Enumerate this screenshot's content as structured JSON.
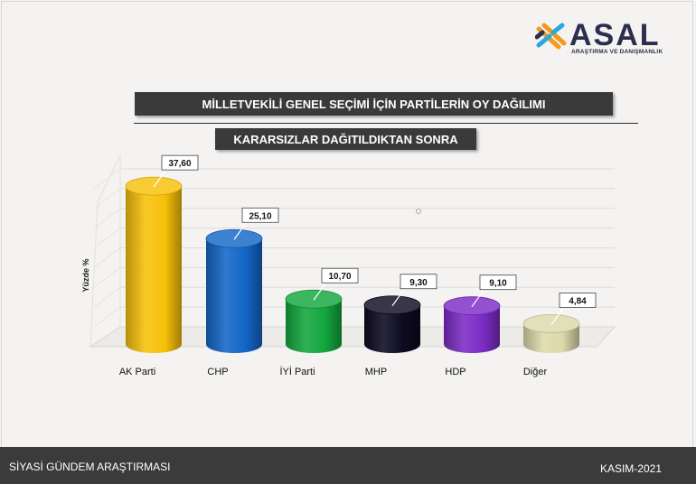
{
  "brand": {
    "name": "ASAL",
    "tagline": "ARAŞTIRMA VE DANIŞMANLIK",
    "colors": {
      "navy": "#2b2f4d",
      "orange": "#f39a1e",
      "blue": "#2aa7df"
    }
  },
  "header": {
    "title": "MİLLETVEKİLİ GENEL SEÇİMİ İÇİN PARTİLERİN OY DAĞILIMI",
    "subtitle": "KARARSIZLAR DAĞITILDIKTAN SONRA"
  },
  "chart_data": {
    "type": "bar",
    "title": "MİLLETVEKİLİ GENEL SEÇİMİ İÇİN PARTİLERİN OY DAĞILIMI",
    "subtitle": "KARARSIZLAR DAĞITILDIKTAN SONRA",
    "ylabel": "Yüzde %",
    "xlabel": "",
    "ylim": [
      0,
      40
    ],
    "grid": true,
    "categories": [
      "AK Parti",
      "CHP",
      "İYİ Parti",
      "MHP",
      "HDP",
      "Diğer"
    ],
    "values": [
      37.6,
      25.1,
      10.7,
      9.3,
      9.1,
      4.84
    ],
    "data_labels": [
      "37,60",
      "25,10",
      "10,70",
      "9,30",
      "9,10",
      "4,84"
    ],
    "colors": [
      "#f7c009",
      "#1266c7",
      "#13a63e",
      "#0c0a1f",
      "#7b2bc4",
      "#dcd9aa"
    ]
  },
  "footer": {
    "left": "SİYASİ GÜNDEM ARAŞTIRMASI",
    "right": "KASIM-2021"
  }
}
